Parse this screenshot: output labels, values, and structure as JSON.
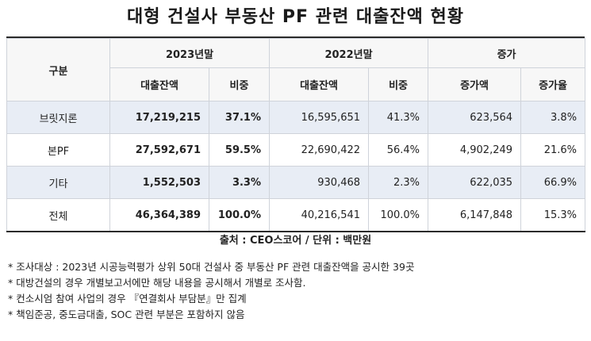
{
  "title": "대형 건설사 부동산 PF 관련 대출잔액 현황",
  "headers": {
    "category": "구분",
    "group_2023": "2023년말",
    "group_2022": "2022년말",
    "group_increase": "증가",
    "loan_balance": "대출잔액",
    "share": "비중",
    "increase_amount": "증가액",
    "increase_rate": "증가율"
  },
  "rows": [
    {
      "label": "브릿지론",
      "bal_2023": "17,219,215",
      "share_2023": "37.1%",
      "bal_2022": "16,595,651",
      "share_2022": "41.3%",
      "inc_amt": "623,564",
      "inc_rate": "3.8%"
    },
    {
      "label": "본PF",
      "bal_2023": "27,592,671",
      "share_2023": "59.5%",
      "bal_2022": "22,690,422",
      "share_2022": "56.4%",
      "inc_amt": "4,902,249",
      "inc_rate": "21.6%"
    },
    {
      "label": "기타",
      "bal_2023": "1,552,503",
      "share_2023": "3.3%",
      "bal_2022": "930,468",
      "share_2022": "2.3%",
      "inc_amt": "622,035",
      "inc_rate": "66.9%"
    },
    {
      "label": "전체",
      "bal_2023": "46,364,389",
      "share_2023": "100.0%",
      "bal_2022": "40,216,541",
      "share_2022": "100.0%",
      "inc_amt": "6,147,848",
      "inc_rate": "15.3%"
    }
  ],
  "source": "출처 : CEO스코어 / 단위 : 백만원",
  "notes": [
    "* 조사대상 : 2023년 시공능력평가 상위 50대 건설사 중 부동산 PF 관련 대출잔액을 공시한 39곳",
    "* 대방건설의 경우 개별보고서에만 해당 내용을 공시해서 개별로 조사함.",
    "* 컨소시엄 참여 사업의 경우 『연결회사 부담분』만 집계",
    "* 책임준공, 중도금대출, SOC 관련 부분은 포함하지 않음"
  ]
}
